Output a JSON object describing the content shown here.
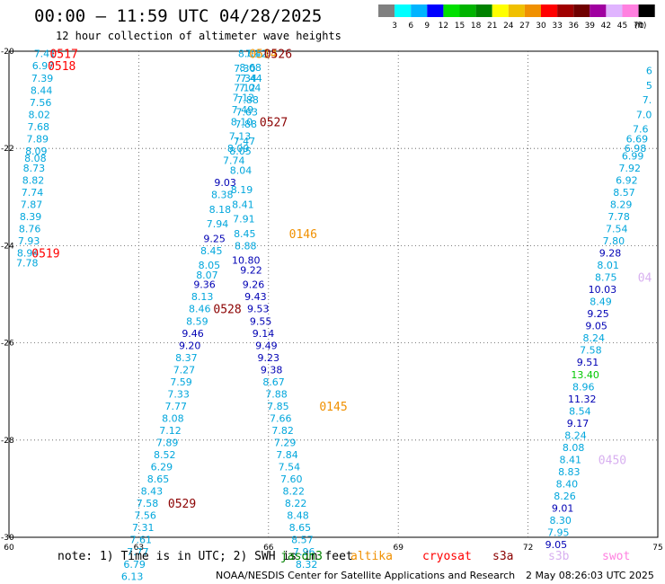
{
  "title": "00:00 – 11:59 UTC 04/28/2025",
  "subtitle": "12 hour collection of altimeter wave heights",
  "scale": {
    "ticks": [
      "3",
      "6",
      "9",
      "12",
      "15",
      "18",
      "21",
      "24",
      "27",
      "30",
      "33",
      "36",
      "39",
      "42",
      "45",
      "70"
    ],
    "unit": "(ft)",
    "colors": [
      "#808080",
      "#00ffff",
      "#00b4ff",
      "#0000ff",
      "#00e000",
      "#00b400",
      "#008200",
      "#ffff00",
      "#f0c000",
      "#f09000",
      "#ff0000",
      "#a00000",
      "#700000",
      "#a000a0",
      "#e0b4ff",
      "#ff80e0",
      "#000000"
    ]
  },
  "axes": {
    "x_ticks": [
      "60",
      "63",
      "66",
      "69",
      "72",
      "75"
    ],
    "y_ticks": [
      "-20",
      "-22",
      "-24",
      "-26",
      "-28",
      "-30"
    ]
  },
  "wave_colors": {
    "lt9": "#00a6dc",
    "9to12": "#0000b4",
    "12to15": "#00c800",
    "time": "#8b0000"
  },
  "readings": [
    {
      "lon": 60.83,
      "lat": -20.05,
      "v": "7.41"
    },
    {
      "lon": 60.79,
      "lat": -20.3,
      "v": "6.97"
    },
    {
      "lon": 60.77,
      "lat": -20.55,
      "v": "7.39"
    },
    {
      "lon": 60.75,
      "lat": -20.8,
      "v": "8.44"
    },
    {
      "lon": 60.73,
      "lat": -21.05,
      "v": "7.56"
    },
    {
      "lon": 60.7,
      "lat": -21.3,
      "v": "8.02"
    },
    {
      "lon": 60.68,
      "lat": -21.55,
      "v": "7.68"
    },
    {
      "lon": 60.66,
      "lat": -21.8,
      "v": "7.89"
    },
    {
      "lon": 60.63,
      "lat": -22.05,
      "v": "8.09"
    },
    {
      "lon": 60.61,
      "lat": -22.2,
      "v": "8.08"
    },
    {
      "lon": 60.58,
      "lat": -22.4,
      "v": "8.73"
    },
    {
      "lon": 60.56,
      "lat": -22.65,
      "v": "8.82"
    },
    {
      "lon": 60.54,
      "lat": -22.9,
      "v": "7.74"
    },
    {
      "lon": 60.52,
      "lat": -23.15,
      "v": "7.87"
    },
    {
      "lon": 60.5,
      "lat": -23.4,
      "v": "8.39"
    },
    {
      "lon": 60.48,
      "lat": -23.65,
      "v": "8.76"
    },
    {
      "lon": 60.46,
      "lat": -23.9,
      "v": "7.93"
    },
    {
      "lon": 60.44,
      "lat": -24.15,
      "v": "8.94"
    },
    {
      "lon": 60.42,
      "lat": -24.35,
      "v": "7.78"
    },
    {
      "lon": 65.55,
      "lat": -20.05,
      "v": "8.01"
    },
    {
      "lon": 65.72,
      "lat": -20.05,
      "v": "7.42"
    },
    {
      "lon": 65.45,
      "lat": -20.35,
      "v": "7.30"
    },
    {
      "lon": 65.58,
      "lat": -20.33,
      "v": "8.68"
    },
    {
      "lon": 65.48,
      "lat": -20.55,
      "v": "7.34"
    },
    {
      "lon": 65.6,
      "lat": -20.55,
      "v": "7.44"
    },
    {
      "lon": 65.45,
      "lat": -20.75,
      "v": "7.12"
    },
    {
      "lon": 65.57,
      "lat": -20.75,
      "v": "7.04"
    },
    {
      "lon": 65.42,
      "lat": -20.95,
      "v": "7.12"
    },
    {
      "lon": 65.52,
      "lat": -21.0,
      "v": "7.88"
    },
    {
      "lon": 65.4,
      "lat": -21.2,
      "v": "7.49"
    },
    {
      "lon": 65.5,
      "lat": -21.25,
      "v": "7.63"
    },
    {
      "lon": 65.38,
      "lat": -21.45,
      "v": "8.10"
    },
    {
      "lon": 65.48,
      "lat": -21.5,
      "v": "7.88"
    },
    {
      "lon": 65.34,
      "lat": -21.75,
      "v": "7.13"
    },
    {
      "lon": 65.44,
      "lat": -21.85,
      "v": "7.47"
    },
    {
      "lon": 65.3,
      "lat": -22.0,
      "v": "8.09"
    },
    {
      "lon": 65.35,
      "lat": -22.05,
      "v": "8.05"
    },
    {
      "lon": 65.2,
      "lat": -22.25,
      "v": "7.74"
    },
    {
      "lon": 65.36,
      "lat": -22.45,
      "v": "8.04"
    },
    {
      "lon": 65.0,
      "lat": -22.7,
      "v": "9.03"
    },
    {
      "lon": 65.38,
      "lat": -22.85,
      "v": "8.19"
    },
    {
      "lon": 64.93,
      "lat": -22.95,
      "v": "8.38"
    },
    {
      "lon": 65.41,
      "lat": -23.15,
      "v": "8.41"
    },
    {
      "lon": 64.88,
      "lat": -23.25,
      "v": "8.18"
    },
    {
      "lon": 65.43,
      "lat": -23.45,
      "v": "7.91"
    },
    {
      "lon": 64.82,
      "lat": -23.55,
      "v": "7.94"
    },
    {
      "lon": 65.45,
      "lat": -23.75,
      "v": "8.45"
    },
    {
      "lon": 64.75,
      "lat": -23.85,
      "v": "9.25"
    },
    {
      "lon": 65.47,
      "lat": -24.0,
      "v": "8.88"
    },
    {
      "lon": 64.68,
      "lat": -24.1,
      "v": "8.45"
    },
    {
      "lon": 65.48,
      "lat": -24.3,
      "v": "10.80"
    },
    {
      "lon": 64.63,
      "lat": -24.4,
      "v": "8.05"
    },
    {
      "lon": 65.6,
      "lat": -24.5,
      "v": "9.22"
    },
    {
      "lon": 64.58,
      "lat": -24.6,
      "v": "8.07"
    },
    {
      "lon": 64.52,
      "lat": -24.8,
      "v": "9.36"
    },
    {
      "lon": 65.65,
      "lat": -24.8,
      "v": "9.26"
    },
    {
      "lon": 64.47,
      "lat": -25.05,
      "v": "8.13"
    },
    {
      "lon": 65.7,
      "lat": -25.05,
      "v": "9.43"
    },
    {
      "lon": 64.41,
      "lat": -25.3,
      "v": "8.46"
    },
    {
      "lon": 65.76,
      "lat": -25.3,
      "v": "9.53"
    },
    {
      "lon": 64.35,
      "lat": -25.55,
      "v": "8.59"
    },
    {
      "lon": 65.82,
      "lat": -25.55,
      "v": "9.55"
    },
    {
      "lon": 64.25,
      "lat": -25.8,
      "v": "9.46"
    },
    {
      "lon": 65.88,
      "lat": -25.8,
      "v": "9.14"
    },
    {
      "lon": 64.18,
      "lat": -26.05,
      "v": "9.20"
    },
    {
      "lon": 65.95,
      "lat": -26.05,
      "v": "9.49"
    },
    {
      "lon": 64.1,
      "lat": -26.3,
      "v": "8.37"
    },
    {
      "lon": 66.0,
      "lat": -26.3,
      "v": "9.23"
    },
    {
      "lon": 64.05,
      "lat": -26.55,
      "v": "7.27"
    },
    {
      "lon": 66.07,
      "lat": -26.55,
      "v": "9.38"
    },
    {
      "lon": 63.98,
      "lat": -26.8,
      "v": "7.59"
    },
    {
      "lon": 66.12,
      "lat": -26.8,
      "v": "8.67"
    },
    {
      "lon": 63.92,
      "lat": -27.05,
      "v": "7.33"
    },
    {
      "lon": 66.18,
      "lat": -27.05,
      "v": "7.88"
    },
    {
      "lon": 63.86,
      "lat": -27.3,
      "v": "7.77"
    },
    {
      "lon": 66.22,
      "lat": -27.3,
      "v": "7.85"
    },
    {
      "lon": 63.79,
      "lat": -27.55,
      "v": "8.08"
    },
    {
      "lon": 66.28,
      "lat": -27.55,
      "v": "7.66"
    },
    {
      "lon": 63.73,
      "lat": -27.8,
      "v": "7.12"
    },
    {
      "lon": 66.33,
      "lat": -27.8,
      "v": "7.82"
    },
    {
      "lon": 63.66,
      "lat": -28.05,
      "v": "7.89"
    },
    {
      "lon": 66.38,
      "lat": -28.05,
      "v": "7.29"
    },
    {
      "lon": 63.6,
      "lat": -28.3,
      "v": "8.52"
    },
    {
      "lon": 66.43,
      "lat": -28.3,
      "v": "7.84"
    },
    {
      "lon": 63.53,
      "lat": -28.55,
      "v": "6.29"
    },
    {
      "lon": 66.48,
      "lat": -28.55,
      "v": "7.54"
    },
    {
      "lon": 63.45,
      "lat": -28.8,
      "v": "8.65"
    },
    {
      "lon": 66.53,
      "lat": -28.8,
      "v": "7.60"
    },
    {
      "lon": 63.3,
      "lat": -29.05,
      "v": "8.43"
    },
    {
      "lon": 66.58,
      "lat": -29.05,
      "v": "8.22"
    },
    {
      "lon": 63.2,
      "lat": -29.3,
      "v": "7.58"
    },
    {
      "lon": 66.63,
      "lat": -29.3,
      "v": "8.22"
    },
    {
      "lon": 63.15,
      "lat": -29.55,
      "v": "7.56"
    },
    {
      "lon": 66.68,
      "lat": -29.55,
      "v": "8.48"
    },
    {
      "lon": 63.1,
      "lat": -29.8,
      "v": "7.31"
    },
    {
      "lon": 66.73,
      "lat": -29.8,
      "v": "8.65"
    },
    {
      "lon": 63.05,
      "lat": -30.05,
      "v": "7.61"
    },
    {
      "lon": 66.78,
      "lat": -30.05,
      "v": "8.57"
    },
    {
      "lon": 62.98,
      "lat": -30.3,
      "v": "7.77"
    },
    {
      "lon": 66.82,
      "lat": -30.3,
      "v": "7.96"
    },
    {
      "lon": 62.9,
      "lat": -30.55,
      "v": "6.79"
    },
    {
      "lon": 66.88,
      "lat": -30.55,
      "v": "8.32"
    },
    {
      "lon": 62.85,
      "lat": -30.8,
      "v": "6.13"
    },
    {
      "lon": 74.8,
      "lat": -20.4,
      "v": "6"
    },
    {
      "lon": 74.8,
      "lat": -20.7,
      "v": "5"
    },
    {
      "lon": 74.75,
      "lat": -21.0,
      "v": "7."
    },
    {
      "lon": 74.68,
      "lat": -21.3,
      "v": "7.0"
    },
    {
      "lon": 74.6,
      "lat": -21.6,
      "v": "7.6"
    },
    {
      "lon": 74.52,
      "lat": -21.8,
      "v": "6.69"
    },
    {
      "lon": 74.48,
      "lat": -22.0,
      "v": "6.98"
    },
    {
      "lon": 74.42,
      "lat": -22.15,
      "v": "6.99"
    },
    {
      "lon": 74.35,
      "lat": -22.4,
      "v": "7.92"
    },
    {
      "lon": 74.28,
      "lat": -22.65,
      "v": "6.92"
    },
    {
      "lon": 74.22,
      "lat": -22.9,
      "v": "8.57"
    },
    {
      "lon": 74.15,
      "lat": -23.15,
      "v": "8.29"
    },
    {
      "lon": 74.1,
      "lat": -23.4,
      "v": "7.78"
    },
    {
      "lon": 74.05,
      "lat": -23.65,
      "v": "7.54"
    },
    {
      "lon": 73.98,
      "lat": -23.9,
      "v": "7.80"
    },
    {
      "lon": 73.9,
      "lat": -24.15,
      "v": "9.28"
    },
    {
      "lon": 73.85,
      "lat": -24.4,
      "v": "8.01"
    },
    {
      "lon": 73.8,
      "lat": -24.65,
      "v": "8.75"
    },
    {
      "lon": 73.72,
      "lat": -24.9,
      "v": "10.03"
    },
    {
      "lon": 73.68,
      "lat": -25.15,
      "v": "8.49"
    },
    {
      "lon": 73.62,
      "lat": -25.4,
      "v": "9.25"
    },
    {
      "lon": 73.58,
      "lat": -25.65,
      "v": "9.05"
    },
    {
      "lon": 73.52,
      "lat": -25.9,
      "v": "8.24"
    },
    {
      "lon": 73.45,
      "lat": -26.15,
      "v": "7.58"
    },
    {
      "lon": 73.38,
      "lat": -26.4,
      "v": "9.51"
    },
    {
      "lon": 73.32,
      "lat": -26.65,
      "v": "13.40"
    },
    {
      "lon": 73.28,
      "lat": -26.9,
      "v": "8.96"
    },
    {
      "lon": 73.25,
      "lat": -27.15,
      "v": "11.32"
    },
    {
      "lon": 73.2,
      "lat": -27.4,
      "v": "8.54"
    },
    {
      "lon": 73.15,
      "lat": -27.65,
      "v": "9.17"
    },
    {
      "lon": 73.1,
      "lat": -27.9,
      "v": "8.24"
    },
    {
      "lon": 73.05,
      "lat": -28.15,
      "v": "8.08"
    },
    {
      "lon": 72.98,
      "lat": -28.4,
      "v": "8.41"
    },
    {
      "lon": 72.95,
      "lat": -28.65,
      "v": "8.83"
    },
    {
      "lon": 72.9,
      "lat": -28.9,
      "v": "8.40"
    },
    {
      "lon": 72.85,
      "lat": -29.15,
      "v": "8.26"
    },
    {
      "lon": 72.8,
      "lat": -29.4,
      "v": "9.01"
    },
    {
      "lon": 72.75,
      "lat": -29.65,
      "v": "8.30"
    },
    {
      "lon": 72.7,
      "lat": -29.9,
      "v": "7.95"
    },
    {
      "lon": 72.65,
      "lat": -30.15,
      "v": "9.05"
    }
  ],
  "time_labels": [
    {
      "lon": 61.27,
      "lat": -20.05,
      "t": "0517",
      "color": "#ff0000"
    },
    {
      "lon": 61.22,
      "lat": -20.3,
      "t": "0518",
      "color": "#ff0000"
    },
    {
      "lon": 60.85,
      "lat": -24.15,
      "t": "0519",
      "color": "#ff0000"
    },
    {
      "lon": 65.88,
      "lat": -20.05,
      "t": "0514",
      "color": "#f09000"
    },
    {
      "lon": 66.22,
      "lat": -20.05,
      "t": "0526",
      "color": "#8b0000"
    },
    {
      "lon": 66.12,
      "lat": -21.45,
      "t": "0527",
      "color": "#8b0000"
    },
    {
      "lon": 66.8,
      "lat": -23.75,
      "t": "0146",
      "color": "#f09000"
    },
    {
      "lon": 65.05,
      "lat": -25.3,
      "t": "0528",
      "color": "#8b0000"
    },
    {
      "lon": 67.5,
      "lat": -27.3,
      "t": "0145",
      "color": "#f09000"
    },
    {
      "lon": 64.0,
      "lat": -29.3,
      "t": "0529",
      "color": "#8b0000"
    },
    {
      "lon": 73.95,
      "lat": -28.4,
      "t": "0450",
      "color": "#d8b0f0"
    },
    {
      "lon": 74.7,
      "lat": -24.65,
      "t": "04",
      "color": "#d8b0f0"
    }
  ],
  "footer": {
    "note": "note: 1) Time is in UTC; 2) SWH is in feet",
    "satellites": [
      {
        "name": "jason3",
        "color": "#008200"
      },
      {
        "name": "altika",
        "color": "#f09000"
      },
      {
        "name": "cryosat",
        "color": "#ff0000"
      },
      {
        "name": "s3a",
        "color": "#8b0000"
      },
      {
        "name": "s3b",
        "color": "#d8b0f0"
      },
      {
        "name": "swot",
        "color": "#ff80e0"
      }
    ],
    "credit": "NOAA/NESDIS Center for Satellite Applications and Research",
    "timestamp": "2 May 08:26:03 UTC 2025"
  }
}
